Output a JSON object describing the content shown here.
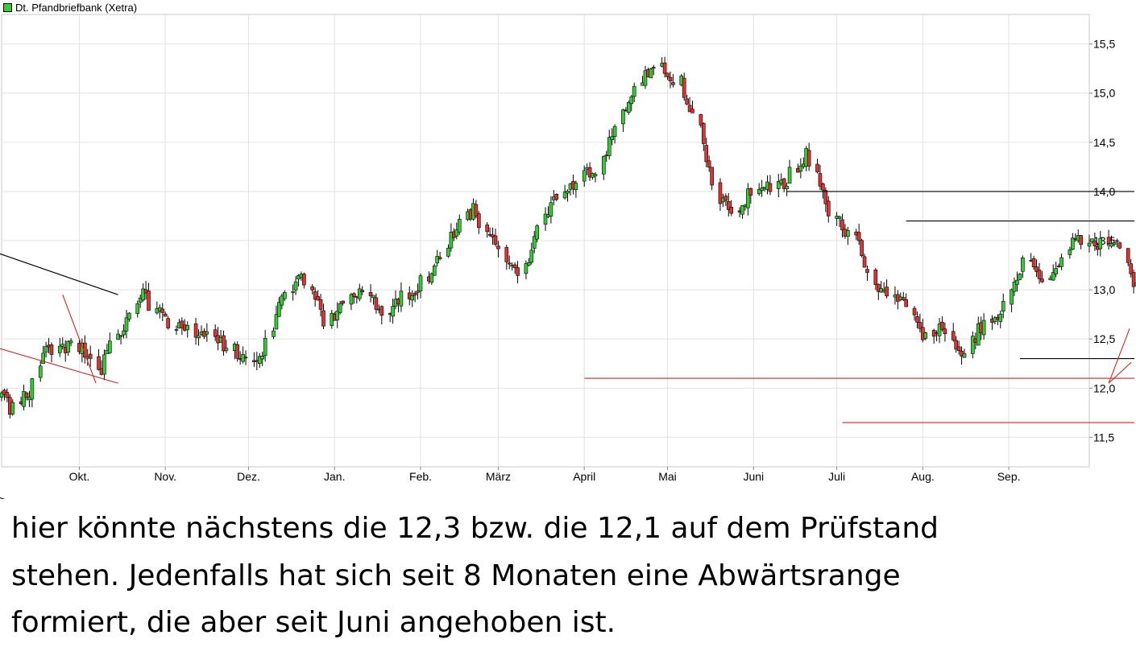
{
  "chart_data": {
    "type": "candlestick",
    "title": "",
    "legend": {
      "label": "Dt. Pfandbriefbank (Xetra)",
      "color": "#33cc33",
      "placement": "top-left"
    },
    "x_axis": {
      "labels": [
        "Okt.",
        "Nov.",
        "Dez.",
        "Jan.",
        "Feb.",
        "März",
        "April",
        "Mai",
        "Juni",
        "Juli",
        "Aug.",
        "Sep."
      ]
    },
    "y_axis": {
      "side": "right",
      "range": [
        11.2,
        15.8
      ],
      "ticks": [
        "11,5",
        "12,0",
        "12,5",
        "13,0",
        "13,5",
        "14,0",
        "14,5",
        "15,0",
        "15,5"
      ]
    },
    "grid": true,
    "up_color": "#33cc33",
    "down_color": "#dd3333",
    "series_anchors_close": [
      [
        0,
        11.9
      ],
      [
        3,
        11.8
      ],
      [
        8,
        11.95
      ],
      [
        12,
        12.4
      ],
      [
        20,
        12.45
      ],
      [
        26,
        12.2
      ],
      [
        33,
        12.7
      ],
      [
        37,
        12.95
      ],
      [
        43,
        12.7
      ],
      [
        50,
        12.55
      ],
      [
        58,
        12.45
      ],
      [
        62,
        12.3
      ],
      [
        68,
        12.35
      ],
      [
        72,
        12.9
      ],
      [
        78,
        13.2
      ],
      [
        84,
        12.7
      ],
      [
        92,
        12.95
      ],
      [
        100,
        12.8
      ],
      [
        108,
        13.05
      ],
      [
        115,
        13.45
      ],
      [
        122,
        13.85
      ],
      [
        126,
        13.5
      ],
      [
        132,
        13.25
      ],
      [
        135,
        13.2
      ],
      [
        140,
        13.75
      ],
      [
        148,
        14.1
      ],
      [
        154,
        14.25
      ],
      [
        160,
        14.8
      ],
      [
        166,
        15.2
      ],
      [
        170,
        15.25
      ],
      [
        175,
        15.1
      ],
      [
        180,
        14.7
      ],
      [
        185,
        13.9
      ],
      [
        190,
        13.8
      ],
      [
        196,
        14.1
      ],
      [
        202,
        14.05
      ],
      [
        208,
        14.4
      ],
      [
        214,
        13.8
      ],
      [
        220,
        13.5
      ],
      [
        226,
        13.05
      ],
      [
        232,
        12.9
      ],
      [
        238,
        12.55
      ],
      [
        244,
        12.6
      ],
      [
        248,
        12.35
      ],
      [
        252,
        12.6
      ],
      [
        258,
        12.8
      ],
      [
        264,
        13.25
      ],
      [
        270,
        13.1
      ],
      [
        276,
        13.5
      ],
      [
        282,
        13.45
      ],
      [
        288,
        13.5
      ],
      [
        294,
        12.9
      ],
      [
        300,
        13.45
      ],
      [
        306,
        13.3
      ],
      [
        312,
        13.6
      ],
      [
        318,
        13.85
      ],
      [
        324,
        13.3
      ],
      [
        328,
        13.0
      ],
      [
        332,
        12.15
      ],
      [
        336,
        11.85
      ],
      [
        340,
        11.95
      ],
      [
        345,
        12.85
      ],
      [
        350,
        13.45
      ],
      [
        356,
        13.5
      ],
      [
        362,
        13.45
      ],
      [
        368,
        13.45
      ],
      [
        374,
        13.35
      ],
      [
        380,
        13.05
      ],
      [
        386,
        12.95
      ],
      [
        392,
        12.95
      ],
      [
        398,
        12.75
      ],
      [
        404,
        12.6
      ],
      [
        410,
        12.55
      ],
      [
        416,
        12.55
      ],
      [
        420,
        12.85
      ],
      [
        426,
        13.0
      ]
    ],
    "drawings": {
      "black_lines": [
        {
          "from": [
            "2018-01-27",
            15.5
          ],
          "to": [
            "2018-10-15",
            12.95
          ]
        },
        {
          "from": [
            "2017-12-31",
            13.1
          ],
          "to": [
            "2018-10-15",
            10.5
          ]
        }
      ],
      "black_horizontals": [
        14.0,
        13.7,
        12.3
      ],
      "red_horizontals": [
        12.1,
        11.65
      ],
      "red_lines": [
        {
          "from": [
            "2018-07-04",
            12.9
          ],
          "to": [
            "2018-10-15",
            12.05
          ]
        },
        {
          "from": [
            "2018-09-25",
            12.95
          ],
          "to": [
            "2018-10-07",
            12.05
          ]
        }
      ]
    }
  },
  "caption": "hier könnte nächstens die 12,3 bzw. die 12,1 auf dem Prüfstand\nstehen. Jedenfalls hat sich seit 8 Monaten eine Abwärtsrange\nformiert, die aber seit Juni angehoben ist."
}
